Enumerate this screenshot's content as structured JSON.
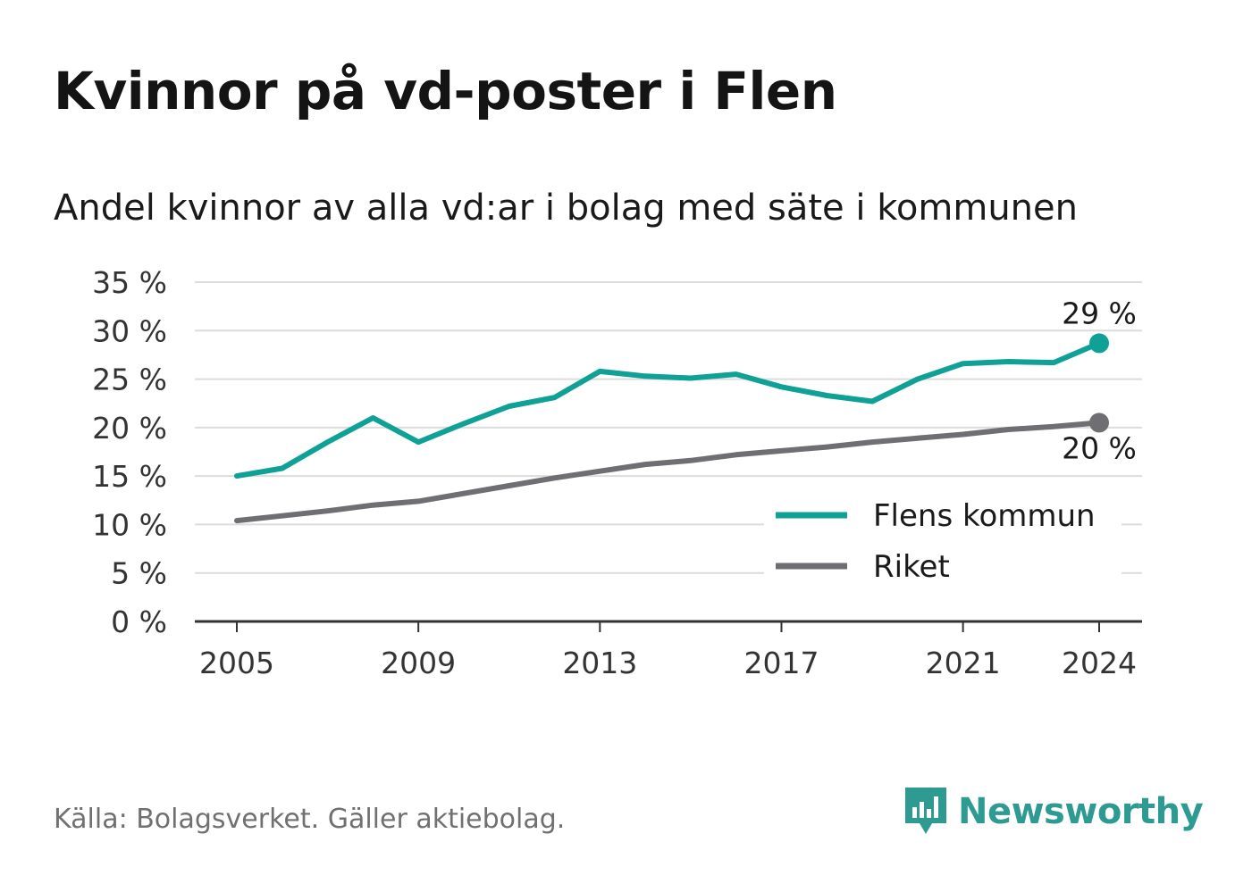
{
  "header": {
    "title": "Kvinnor på vd-poster i Flen",
    "subtitle": "Andel kvinnor av alla vd:ar i bolag med säte i kommunen"
  },
  "footer": {
    "source": "Källa: Bolagsverket. Gäller aktiebolag.",
    "brand": "Newsworthy"
  },
  "colors": {
    "flen": "#10a196",
    "riket": "#6f6e73",
    "grid": "#dcdcdc",
    "axis": "#333333",
    "brand": "#2e9b92"
  },
  "chart_data": {
    "type": "line",
    "title": "Kvinnor på vd-poster i Flen",
    "subtitle": "Andel kvinnor av alla vd:ar i bolag med säte i kommunen",
    "x": [
      2005,
      2006,
      2007,
      2008,
      2009,
      2010,
      2011,
      2012,
      2013,
      2014,
      2015,
      2016,
      2017,
      2018,
      2019,
      2020,
      2021,
      2022,
      2023,
      2024
    ],
    "x_ticks": [
      2005,
      2009,
      2013,
      2017,
      2021,
      2024
    ],
    "xlim": [
      2005,
      2024
    ],
    "ylim": [
      0,
      35
    ],
    "y_ticks": [
      0,
      5,
      10,
      15,
      20,
      25,
      30,
      35
    ],
    "y_tick_labels": [
      "0 %",
      "5 %",
      "10 %",
      "15 %",
      "20 %",
      "25 %",
      "30 %",
      "35 %"
    ],
    "y_unit": "%",
    "grid": true,
    "legend_position": "bottom-right",
    "series": [
      {
        "name": "Flens kommun",
        "color": "#10a196",
        "values": [
          15.0,
          15.8,
          18.5,
          21.0,
          18.5,
          20.4,
          22.2,
          23.1,
          25.8,
          25.3,
          25.1,
          25.5,
          24.2,
          23.3,
          22.7,
          25.0,
          26.6,
          26.8,
          26.7,
          28.7
        ],
        "end_label": "29 %"
      },
      {
        "name": "Riket",
        "color": "#6f6e73",
        "values": [
          10.4,
          10.9,
          11.4,
          12.0,
          12.4,
          13.2,
          14.0,
          14.8,
          15.5,
          16.2,
          16.6,
          17.2,
          17.6,
          18.0,
          18.5,
          18.9,
          19.3,
          19.8,
          20.1,
          20.5
        ],
        "end_label": "20 %"
      }
    ]
  }
}
